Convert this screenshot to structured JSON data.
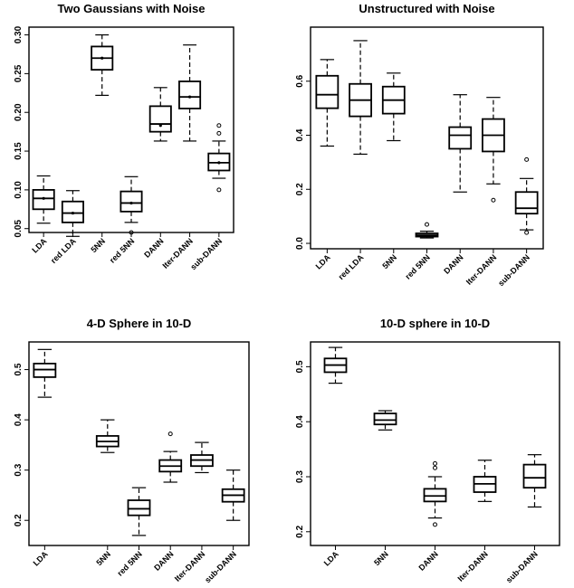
{
  "chart_data": [
    {
      "type": "box",
      "title": "Two Gaussians with Noise",
      "yticks": [
        "0.05",
        "0.10",
        "0.15",
        "0.20",
        "0.25",
        "0.30"
      ],
      "ylim": [
        0.045,
        0.31
      ],
      "categories": [
        "LDA",
        "red LDA",
        "5NN",
        "red 5NN",
        "DANN",
        "Iter-DANN",
        "sub-DANN"
      ],
      "boxes": [
        {
          "min": 0.057,
          "q1": 0.075,
          "median": 0.089,
          "q3": 0.1,
          "max": 0.118,
          "outliers": [],
          "marker": 0.089
        },
        {
          "min": 0.04,
          "q1": 0.058,
          "median": 0.07,
          "q3": 0.085,
          "max": 0.099,
          "outliers": [],
          "marker": 0.07
        },
        {
          "min": 0.222,
          "q1": 0.255,
          "median": 0.27,
          "q3": 0.285,
          "max": 0.3,
          "outliers": [],
          "marker": 0.27
        },
        {
          "min": 0.058,
          "q1": 0.072,
          "median": 0.083,
          "q3": 0.098,
          "max": 0.117,
          "outliers": [
            0.045
          ],
          "marker": 0.083
        },
        {
          "min": 0.163,
          "q1": 0.175,
          "median": 0.185,
          "q3": 0.208,
          "max": 0.232,
          "outliers": [],
          "marker": 0.183
        },
        {
          "min": 0.163,
          "q1": 0.205,
          "median": 0.22,
          "q3": 0.24,
          "max": 0.287,
          "outliers": [],
          "marker": 0.22
        },
        {
          "min": 0.115,
          "q1": 0.125,
          "median": 0.135,
          "q3": 0.147,
          "max": 0.163,
          "outliers": [
            0.1,
            0.173,
            0.183
          ],
          "marker": 0.135
        }
      ]
    },
    {
      "type": "box",
      "title": "Unstructured with Noise",
      "yticks": [
        "0.0",
        "0.2",
        "0.4",
        "0.6"
      ],
      "ylim": [
        -0.02,
        0.8
      ],
      "categories": [
        "LDA",
        "red LDA",
        "5NN",
        "red 5NN",
        "DANN",
        "Iter-DANN",
        "sub-DANN"
      ],
      "boxes": [
        {
          "min": 0.36,
          "q1": 0.5,
          "median": 0.55,
          "q3": 0.62,
          "max": 0.68,
          "outliers": []
        },
        {
          "min": 0.33,
          "q1": 0.47,
          "median": 0.53,
          "q3": 0.59,
          "max": 0.75,
          "outliers": []
        },
        {
          "min": 0.38,
          "q1": 0.48,
          "median": 0.53,
          "q3": 0.58,
          "max": 0.63,
          "outliers": []
        },
        {
          "min": 0.02,
          "q1": 0.025,
          "median": 0.03,
          "q3": 0.037,
          "max": 0.045,
          "outliers": [
            0.07
          ]
        },
        {
          "min": 0.19,
          "q1": 0.35,
          "median": 0.4,
          "q3": 0.43,
          "max": 0.55,
          "outliers": []
        },
        {
          "min": 0.22,
          "q1": 0.34,
          "median": 0.4,
          "q3": 0.46,
          "max": 0.54,
          "outliers": [
            0.16
          ]
        },
        {
          "min": 0.05,
          "q1": 0.11,
          "median": 0.13,
          "q3": 0.19,
          "max": 0.24,
          "outliers": [
            0.31,
            0.04
          ]
        }
      ]
    },
    {
      "type": "box",
      "title": "4-D Sphere in 10-D",
      "yticks": [
        "0.2",
        "0.3",
        "0.4",
        "0.5"
      ],
      "ylim": [
        0.15,
        0.555
      ],
      "categories": [
        "LDA",
        "5NN",
        "red 5NN",
        "DANN",
        "Iter-DANN",
        "sub-DANN"
      ],
      "positions": [
        1,
        3,
        4,
        5,
        6,
        7
      ],
      "boxes": [
        {
          "min": 0.445,
          "q1": 0.485,
          "median": 0.5,
          "q3": 0.512,
          "max": 0.54,
          "outliers": []
        },
        {
          "min": 0.335,
          "q1": 0.347,
          "median": 0.357,
          "q3": 0.368,
          "max": 0.4,
          "outliers": []
        },
        {
          "min": 0.17,
          "q1": 0.21,
          "median": 0.223,
          "q3": 0.24,
          "max": 0.265,
          "outliers": []
        },
        {
          "min": 0.276,
          "q1": 0.297,
          "median": 0.308,
          "q3": 0.32,
          "max": 0.337,
          "outliers": [
            0.372
          ]
        },
        {
          "min": 0.295,
          "q1": 0.308,
          "median": 0.32,
          "q3": 0.33,
          "max": 0.355,
          "outliers": []
        },
        {
          "min": 0.2,
          "q1": 0.237,
          "median": 0.25,
          "q3": 0.262,
          "max": 0.3,
          "outliers": []
        }
      ]
    },
    {
      "type": "box",
      "title": "10-D sphere in 10-D",
      "yticks": [
        "0.2",
        "0.3",
        "0.4",
        "0.5"
      ],
      "ylim": [
        0.175,
        0.545
      ],
      "categories": [
        "LDA",
        "5NN",
        "DANN",
        "Iter-DANN",
        "sub-DANN"
      ],
      "positions": [
        1,
        2,
        3,
        4,
        5
      ],
      "boxes": [
        {
          "min": 0.47,
          "q1": 0.49,
          "median": 0.503,
          "q3": 0.515,
          "max": 0.535,
          "outliers": []
        },
        {
          "min": 0.385,
          "q1": 0.395,
          "median": 0.403,
          "q3": 0.415,
          "max": 0.42,
          "outliers": []
        },
        {
          "min": 0.225,
          "q1": 0.255,
          "median": 0.265,
          "q3": 0.278,
          "max": 0.3,
          "outliers": [
            0.213,
            0.316,
            0.324
          ]
        },
        {
          "min": 0.255,
          "q1": 0.272,
          "median": 0.287,
          "q3": 0.3,
          "max": 0.33,
          "outliers": []
        },
        {
          "min": 0.245,
          "q1": 0.28,
          "median": 0.298,
          "q3": 0.322,
          "max": 0.34,
          "outliers": []
        }
      ]
    }
  ]
}
